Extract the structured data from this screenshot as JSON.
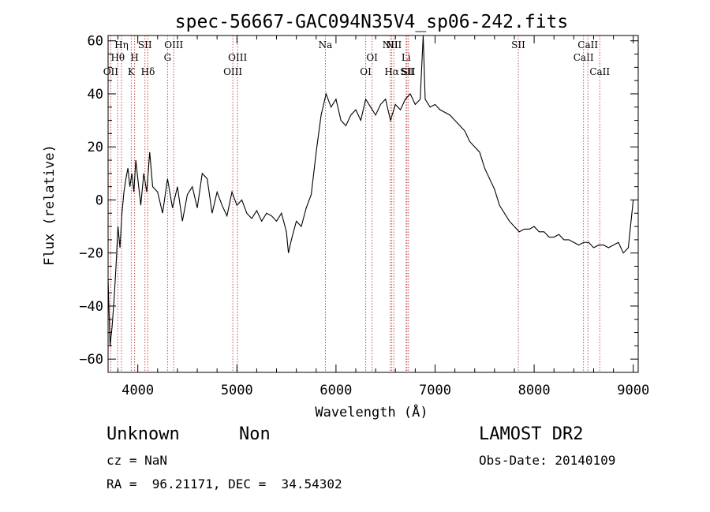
{
  "chart_data": {
    "type": "line",
    "title": "spec-56667-GAC094N35V4_sp06-242.fits",
    "xlabel": "Wavelength (Å)",
    "ylabel": "Flux (relative)",
    "xlim": [
      3700,
      9050
    ],
    "ylim": [
      -65,
      62
    ],
    "xticks": [
      4000,
      5000,
      6000,
      7000,
      8000,
      9000
    ],
    "yticks": [
      -60,
      -40,
      -20,
      0,
      20,
      40,
      60
    ],
    "grid": false,
    "series": [
      {
        "color": "#000000",
        "x": [
          3700,
          3720,
          3740,
          3760,
          3780,
          3800,
          3820,
          3840,
          3860,
          3880,
          3900,
          3920,
          3940,
          3960,
          3980,
          4000,
          4030,
          4060,
          4090,
          4120,
          4150,
          4200,
          4250,
          4300,
          4350,
          4400,
          4450,
          4500,
          4550,
          4600,
          4650,
          4700,
          4750,
          4800,
          4850,
          4900,
          4950,
          5000,
          5050,
          5100,
          5150,
          5200,
          5250,
          5300,
          5350,
          5400,
          5450,
          5500,
          5520,
          5550,
          5600,
          5650,
          5700,
          5750,
          5800,
          5850,
          5900,
          5950,
          6000,
          6050,
          6100,
          6150,
          6200,
          6250,
          6300,
          6350,
          6400,
          6450,
          6500,
          6550,
          6600,
          6650,
          6700,
          6750,
          6800,
          6850,
          6880,
          6900,
          6950,
          7000,
          7050,
          7100,
          7150,
          7200,
          7250,
          7300,
          7350,
          7400,
          7450,
          7500,
          7550,
          7600,
          7650,
          7700,
          7750,
          7800,
          7850,
          7900,
          7950,
          8000,
          8050,
          8100,
          8150,
          8200,
          8250,
          8300,
          8350,
          8400,
          8450,
          8500,
          8550,
          8600,
          8650,
          8700,
          8750,
          8800,
          8850,
          8900,
          8950,
          9000
        ],
        "y": [
          -30,
          -55,
          -48,
          -38,
          -25,
          -10,
          -18,
          -5,
          3,
          8,
          12,
          5,
          10,
          3,
          15,
          8,
          -2,
          10,
          3,
          18,
          5,
          3,
          -5,
          8,
          -3,
          5,
          -8,
          2,
          5,
          -3,
          10,
          8,
          -5,
          3,
          -2,
          -6,
          3,
          -2,
          0,
          -5,
          -7,
          -4,
          -8,
          -5,
          -6,
          -8,
          -5,
          -12,
          -20,
          -15,
          -8,
          -10,
          -3,
          2,
          18,
          32,
          40,
          35,
          38,
          30,
          28,
          32,
          34,
          30,
          38,
          35,
          32,
          36,
          38,
          30,
          36,
          34,
          38,
          40,
          36,
          38,
          62,
          38,
          35,
          36,
          34,
          33,
          32,
          30,
          28,
          26,
          22,
          20,
          18,
          12,
          8,
          4,
          -2,
          -5,
          -8,
          -10,
          -12,
          -11,
          -11,
          -10,
          -12,
          -12,
          -14,
          -14,
          -13,
          -15,
          -15,
          -16,
          -17,
          -16,
          -16,
          -18,
          -17,
          -17,
          -18,
          -17,
          -16,
          -20,
          -18,
          0
        ]
      }
    ],
    "line_markers": [
      {
        "wavelength": 3727,
        "label": "OII",
        "row": 3
      },
      {
        "wavelength": 3798,
        "label": "Hθ",
        "row": 2
      },
      {
        "wavelength": 3835,
        "label": "Hη",
        "row": 1
      },
      {
        "wavelength": 3934,
        "label": "K",
        "row": 3
      },
      {
        "wavelength": 3968,
        "label": "H",
        "row": 2
      },
      {
        "wavelength": 4072,
        "label": "SII",
        "row": 1
      },
      {
        "wavelength": 4102,
        "label": "Hδ",
        "row": 3
      },
      {
        "wavelength": 4300,
        "label": "G",
        "row": 2
      },
      {
        "wavelength": 4363,
        "label": "OIII",
        "row": 1
      },
      {
        "wavelength": 4959,
        "label": "OIII",
        "row": 3
      },
      {
        "wavelength": 5007,
        "label": "OIII",
        "row": 2
      },
      {
        "wavelength": 5893,
        "label": "Na",
        "row": 1
      },
      {
        "wavelength": 6300,
        "label": "OI",
        "row": 3
      },
      {
        "wavelength": 6364,
        "label": "OI",
        "row": 2
      },
      {
        "wavelength": 6548,
        "label": "NII",
        "row": 1
      },
      {
        "wavelength": 6563,
        "label": "Hα",
        "row": 3
      },
      {
        "wavelength": 6584,
        "label": "NII",
        "row": 1
      },
      {
        "wavelength": 6708,
        "label": "Li",
        "row": 2
      },
      {
        "wavelength": 6716,
        "label": "SII",
        "row": 3
      },
      {
        "wavelength": 6731,
        "label": "SII",
        "row": 3
      },
      {
        "wavelength": 7840,
        "label": "SII",
        "row": 1
      },
      {
        "wavelength": 8498,
        "label": "CaII",
        "row": 2
      },
      {
        "wavelength": 8542,
        "label": "CaII",
        "row": 1
      },
      {
        "wavelength": 8662,
        "label": "CaII",
        "row": 3
      }
    ]
  },
  "info": {
    "class_label": "Unknown",
    "subclass_label": "Non",
    "cz": "cz = NaN",
    "coords": "RA =  96.21171, DEC =  34.54302",
    "survey": "LAMOST DR2",
    "obs_date": "Obs-Date: 20140109"
  },
  "colors": {
    "spectrum": "#000000",
    "line_marker": "#c0504d"
  }
}
